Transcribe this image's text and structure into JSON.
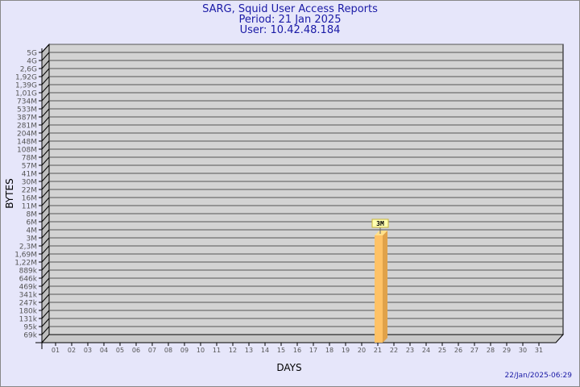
{
  "chart_data": {
    "type": "bar",
    "title": "SARG, Squid User Access Reports",
    "subtitle_lines": [
      "Period: 21 Jan 2025",
      "User: 10.42.48.184"
    ],
    "xlabel": "DAYS",
    "ylabel": "BYTES",
    "y_scale": "log",
    "y_tick_labels": [
      "5G",
      "4G",
      "2,6G",
      "1,92G",
      "1,39G",
      "1,01G",
      "734M",
      "533M",
      "387M",
      "281M",
      "204M",
      "148M",
      "108M",
      "78M",
      "57M",
      "41M",
      "30M",
      "22M",
      "16M",
      "11M",
      "8M",
      "6M",
      "4M",
      "3M",
      "2,3M",
      "1,69M",
      "1,22M",
      "889k",
      "646k",
      "469k",
      "341k",
      "247k",
      "180k",
      "131k",
      "95k",
      "69k"
    ],
    "categories": [
      "01",
      "02",
      "03",
      "04",
      "05",
      "06",
      "07",
      "08",
      "09",
      "10",
      "11",
      "12",
      "13",
      "14",
      "15",
      "16",
      "17",
      "18",
      "19",
      "20",
      "21",
      "22",
      "23",
      "24",
      "25",
      "26",
      "27",
      "28",
      "29",
      "30",
      "31"
    ],
    "bars": [
      {
        "category": "21",
        "value": "3M",
        "label": "3M"
      }
    ],
    "grid": true,
    "colors": {
      "bar": "#ffc266",
      "bar_side": "#e0a24a",
      "wall": "#d3d3d3",
      "text": "#1a1aa6"
    }
  },
  "footer": {
    "timestamp": "22/Jan/2025-06:29"
  }
}
